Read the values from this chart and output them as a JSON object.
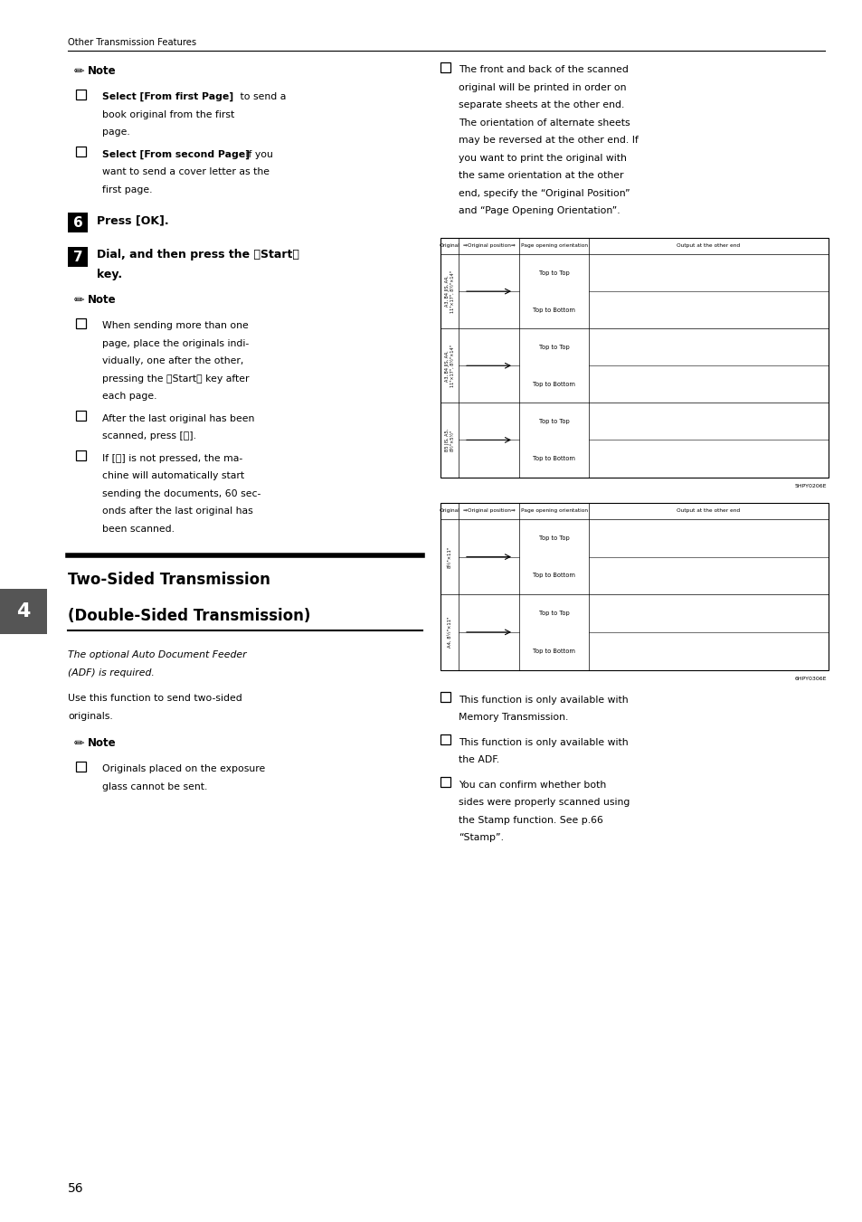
{
  "bg_color": "#ffffff",
  "page_width": 9.54,
  "page_height": 13.51,
  "header_text": "Other Transmission Features",
  "page_number": "56",
  "left_tab": "4",
  "section_title_line1": "Two-Sided Transmission",
  "section_title_line2": "(Double-Sided Transmission)",
  "italic_note_line1": "The optional Auto Document Feeder",
  "italic_note_line2": "(ADF) is required.",
  "use_function_text_line1": "Use this function to send two-sided",
  "use_function_text_line2": "originals.",
  "originals_note_line1": "Originals placed on the exposure",
  "originals_note_line2": "glass cannot be sent.",
  "bullet_right_top_lines": [
    "The front and back of the scanned",
    "original will be printed in order on",
    "separate sheets at the other end.",
    "The orientation of alternate sheets",
    "may be reversed at the other end. If",
    "you want to print the original with",
    "the same orientation at the other",
    "end, specify the “Original Position”",
    "and “Page Opening Orientation”."
  ],
  "bullet_right_bottom": [
    [
      "This function is only available with",
      "Memory Transmission."
    ],
    [
      "This function is only available with",
      "the ADF."
    ],
    [
      "You can confirm whether both",
      "sides were properly scanned using",
      "the Stamp function. See p.66",
      "“Stamp”."
    ]
  ],
  "note1_items": [
    {
      "bold": "Select [From first Page]",
      "rest_lines": [
        " to send a",
        "book original from the first",
        "page."
      ]
    },
    {
      "bold": "Select [From second Page]",
      "rest_lines": [
        " if you",
        "want to send a cover letter as the",
        "first page."
      ]
    }
  ],
  "step6_label": "6",
  "step6_text": "Press [OK].",
  "step7_label": "7",
  "step7_line1": "Dial, and then press the 【Start】",
  "step7_line2": "key.",
  "note2_items": [
    [
      "When sending more than one",
      "page, place the originals indi-",
      "vidually, one after the other,",
      "pressing the 【Start】 key after",
      "each page."
    ],
    [
      "After the last original has been",
      "scanned, press [ⓘ]."
    ],
    [
      "If [ⓘ] is not pressed, the ma-",
      "chine will automatically start",
      "sending the documents, 60 sec-",
      "onds after the last original has",
      "been scanned."
    ]
  ],
  "table1_paper_sizes": [
    "A3, B4 JIS, A4, 11\"×17\", 8½\"×14\"",
    "A3, B4 JIS, A4, 11\"×17\", 8½\"×14\"",
    "A5, 8½\"×5½\""
  ],
  "table2_paper_sizes": [
    "8½\"×11\"",
    "A4, 8½\"×11\""
  ],
  "table_col_labels": [
    "Original",
    "⇒Original position⇒",
    "Page opening orientation",
    "Output at the other end"
  ],
  "table1_code": "5HPY0206E",
  "table2_code": "6HPY0306E"
}
